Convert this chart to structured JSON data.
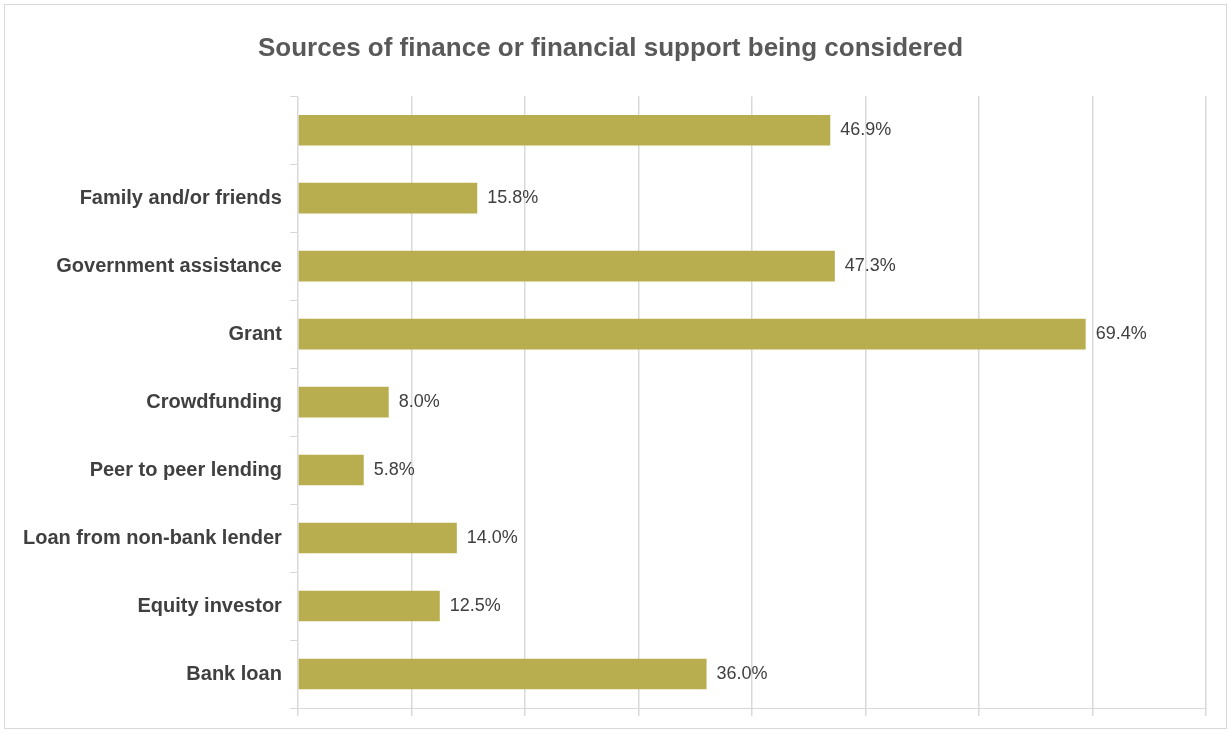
{
  "chart_data": {
    "type": "bar",
    "orientation": "horizontal",
    "title": "Sources of finance or financial support being considered",
    "categories": [
      null,
      "Family and/or friends",
      "Government assistance",
      "Grant",
      "Crowdfunding",
      "Peer to peer lending",
      "Loan from non-bank lender",
      "Equity investor",
      "Bank loan"
    ],
    "values": [
      46.9,
      15.8,
      47.3,
      69.4,
      8.0,
      5.8,
      14.0,
      12.5,
      36.0
    ],
    "value_labels": [
      "46.9%",
      "15.8%",
      "47.3%",
      "69.4%",
      "8.0%",
      "5.8%",
      "14.0%",
      "12.5%",
      "36.0%"
    ],
    "color": "#b9ae4f",
    "xlim": [
      0,
      80
    ],
    "xticks": [
      {
        "value": 0,
        "label": null
      },
      {
        "value": 10,
        "label": null
      },
      {
        "value": 20,
        "label": null
      },
      {
        "value": 30,
        "label": null
      },
      {
        "value": 40,
        "label": null
      },
      {
        "value": 50,
        "label": null
      },
      {
        "value": 60,
        "label": null
      },
      {
        "value": 70,
        "label": null
      },
      {
        "value": 80,
        "label": null
      }
    ],
    "grid": "x",
    "tick_labels": "y",
    "legend": false
  }
}
